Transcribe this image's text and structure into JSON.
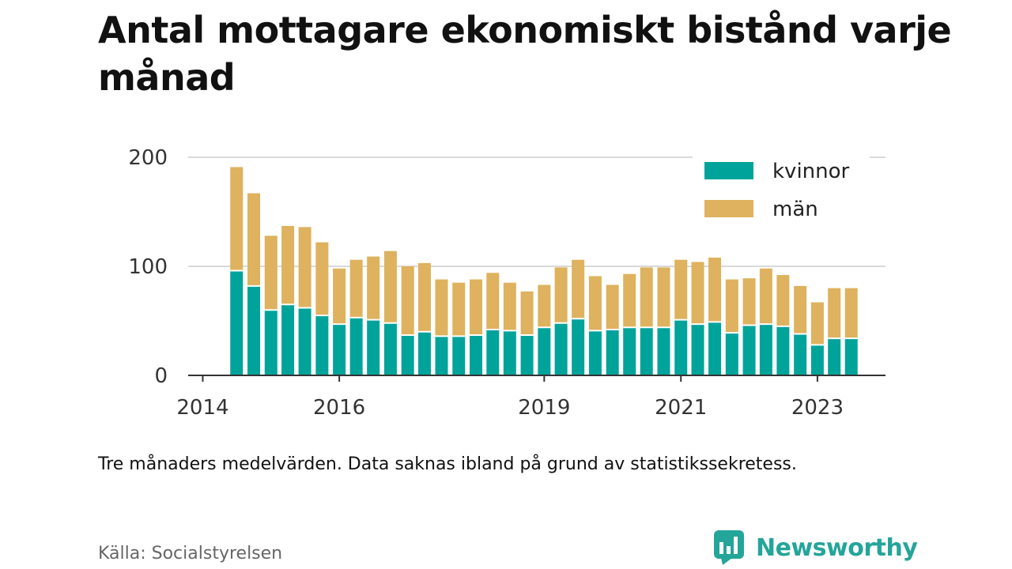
{
  "title": "Antal mottagare ekonomiskt bistånd varje månad",
  "note": "Tre månaders medelvärden. Data saknas ibland på grund av statistikssekretess.",
  "source": "Källa: Socialstyrelsen",
  "brand": {
    "name": "Newsworthy",
    "icon": "chart-bubble-icon"
  },
  "colors": {
    "kvinnor": "#00a39a",
    "man": "#deb25e",
    "grid": "#d9d9d9",
    "axis": "#333333",
    "brand": "#24a59a"
  },
  "chart_data": {
    "type": "bar",
    "stacked": true,
    "title": "Antal mottagare ekonomiskt bistånd varje månad",
    "xlabel": "",
    "ylabel": "",
    "ylim": [
      0,
      200
    ],
    "yticks": [
      0,
      100,
      200
    ],
    "xticks": [
      "2014",
      "2016",
      "2019",
      "2021",
      "2023"
    ],
    "grid": true,
    "legend_position": "top-right",
    "x": [
      "2014-07",
      "2014-10",
      "2015-01",
      "2015-04",
      "2015-07",
      "2015-10",
      "2016-01",
      "2016-04",
      "2016-07",
      "2016-10",
      "2017-01",
      "2017-04",
      "2017-07",
      "2017-10",
      "2018-01",
      "2018-04",
      "2018-07",
      "2018-10",
      "2019-01",
      "2019-04",
      "2019-07",
      "2019-10",
      "2020-01",
      "2020-04",
      "2020-07",
      "2020-10",
      "2021-01",
      "2021-04",
      "2021-07",
      "2021-10",
      "2022-01",
      "2022-04",
      "2022-07",
      "2022-10",
      "2023-01",
      "2023-04",
      "2023-07"
    ],
    "series": [
      {
        "name": "kvinnor",
        "values": [
          96,
          82,
          60,
          65,
          62,
          55,
          47,
          53,
          51,
          48,
          37,
          40,
          36,
          36,
          37,
          42,
          41,
          37,
          44,
          48,
          52,
          41,
          42,
          44,
          44,
          44,
          51,
          47,
          49,
          39,
          46,
          47,
          45,
          38,
          28,
          34,
          34
        ]
      },
      {
        "name": "män",
        "values": [
          95,
          85,
          68,
          72,
          74,
          67,
          51,
          53,
          58,
          66,
          63,
          63,
          52,
          49,
          51,
          52,
          44,
          40,
          39,
          51,
          54,
          50,
          41,
          49,
          55,
          55,
          55,
          57,
          59,
          49,
          43,
          51,
          47,
          44,
          39,
          46,
          46
        ]
      }
    ]
  }
}
